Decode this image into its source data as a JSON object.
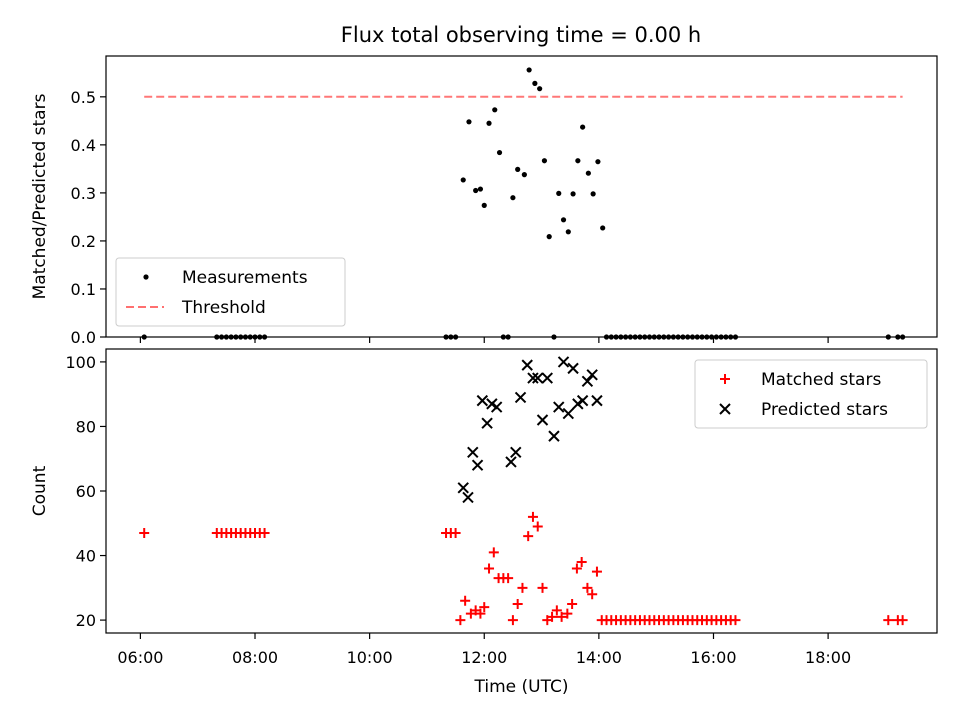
{
  "figure": {
    "title": "Flux total observing time = 0.00 h"
  },
  "chart_data": [
    {
      "type": "scatter",
      "title": "Flux total observing time = 0.00 h",
      "xlabel": "",
      "ylabel": "Matched/Predicted stars",
      "x_axis": "time",
      "xlim": [
        "05:24",
        "19:54"
      ],
      "ylim": [
        0,
        0.585
      ],
      "yticks": [
        "0.0",
        "0.1",
        "0.2",
        "0.3",
        "0.4",
        "0.5"
      ],
      "xticks": [
        "06:00",
        "08:00",
        "10:00",
        "12:00",
        "14:00",
        "16:00",
        "18:00"
      ],
      "grid": false,
      "legend": "lower-left",
      "series": [
        {
          "name": "Measurements",
          "style": "dot",
          "color": "#000000",
          "points": [
            [
              "06:04",
              0
            ],
            [
              "07:20",
              0
            ],
            [
              "07:25",
              0
            ],
            [
              "07:30",
              0
            ],
            [
              "07:35",
              0
            ],
            [
              "07:40",
              0
            ],
            [
              "07:45",
              0
            ],
            [
              "07:50",
              0
            ],
            [
              "07:55",
              0
            ],
            [
              "08:00",
              0
            ],
            [
              "08:05",
              0
            ],
            [
              "08:10",
              0
            ],
            [
              "11:20",
              0
            ],
            [
              "11:25",
              0
            ],
            [
              "11:30",
              0
            ],
            [
              "11:38",
              0.327
            ],
            [
              "11:44",
              0.448
            ],
            [
              "11:51",
              0.305
            ],
            [
              "11:56",
              0.308
            ],
            [
              "12:00",
              0.274
            ],
            [
              "12:05",
              0.445
            ],
            [
              "12:11",
              0.473
            ],
            [
              "12:16",
              0.384
            ],
            [
              "12:20",
              0
            ],
            [
              "12:25",
              0
            ],
            [
              "12:30",
              0.29
            ],
            [
              "12:35",
              0.349
            ],
            [
              "12:42",
              0.338
            ],
            [
              "12:47",
              0.556
            ],
            [
              "12:53",
              0.528
            ],
            [
              "12:58",
              0.517
            ],
            [
              "13:03",
              0.367
            ],
            [
              "13:08",
              0.209
            ],
            [
              "13:13",
              0
            ],
            [
              "13:18",
              0.299
            ],
            [
              "13:23",
              0.244
            ],
            [
              "13:28",
              0.219
            ],
            [
              "13:33",
              0.298
            ],
            [
              "13:38",
              0.367
            ],
            [
              "13:43",
              0.437
            ],
            [
              "13:49",
              0.341
            ],
            [
              "13:54",
              0.298
            ],
            [
              "13:59",
              0.365
            ],
            [
              "14:04",
              0.227
            ],
            [
              "14:08",
              0
            ],
            [
              "14:13",
              0
            ],
            [
              "14:18",
              0
            ],
            [
              "14:23",
              0
            ],
            [
              "14:28",
              0
            ],
            [
              "14:33",
              0
            ],
            [
              "14:38",
              0
            ],
            [
              "14:43",
              0
            ],
            [
              "14:48",
              0
            ],
            [
              "14:53",
              0
            ],
            [
              "14:58",
              0
            ],
            [
              "15:03",
              0
            ],
            [
              "15:08",
              0
            ],
            [
              "15:13",
              0
            ],
            [
              "15:18",
              0
            ],
            [
              "15:23",
              0
            ],
            [
              "15:28",
              0
            ],
            [
              "15:33",
              0
            ],
            [
              "15:38",
              0
            ],
            [
              "15:43",
              0
            ],
            [
              "15:48",
              0
            ],
            [
              "15:53",
              0
            ],
            [
              "15:58",
              0
            ],
            [
              "16:03",
              0
            ],
            [
              "16:08",
              0
            ],
            [
              "16:13",
              0
            ],
            [
              "16:18",
              0
            ],
            [
              "16:23",
              0
            ],
            [
              "19:03",
              0
            ],
            [
              "19:13",
              0
            ],
            [
              "19:18",
              0
            ]
          ]
        },
        {
          "name": "Threshold",
          "style": "dashed-line",
          "color": "#ff7070",
          "points": [
            [
              "06:04",
              0.5
            ],
            [
              "19:18",
              0.5
            ]
          ]
        }
      ]
    },
    {
      "type": "scatter",
      "title": "",
      "xlabel": "Time (UTC)",
      "ylabel": "Count",
      "x_axis": "time",
      "xlim": [
        "05:24",
        "19:54"
      ],
      "ylim": [
        16,
        104
      ],
      "yticks": [
        "20",
        "40",
        "60",
        "80",
        "100"
      ],
      "xticks": [
        "06:00",
        "08:00",
        "10:00",
        "12:00",
        "14:00",
        "16:00",
        "18:00"
      ],
      "grid": false,
      "legend": "upper-right",
      "series": [
        {
          "name": "Matched stars",
          "style": "plus",
          "color": "#ff0000",
          "points": [
            [
              "06:04",
              47
            ],
            [
              "07:20",
              47
            ],
            [
              "07:25",
              47
            ],
            [
              "07:30",
              47
            ],
            [
              "07:35",
              47
            ],
            [
              "07:40",
              47
            ],
            [
              "07:45",
              47
            ],
            [
              "07:50",
              47
            ],
            [
              "07:55",
              47
            ],
            [
              "08:00",
              47
            ],
            [
              "08:05",
              47
            ],
            [
              "08:10",
              47
            ],
            [
              "11:20",
              47
            ],
            [
              "11:25",
              47
            ],
            [
              "11:30",
              47
            ],
            [
              "11:35",
              20
            ],
            [
              "11:40",
              26
            ],
            [
              "11:46",
              22
            ],
            [
              "11:51",
              23
            ],
            [
              "11:56",
              22
            ],
            [
              "12:00",
              24
            ],
            [
              "12:05",
              36
            ],
            [
              "12:10",
              41
            ],
            [
              "12:15",
              33
            ],
            [
              "12:20",
              33
            ],
            [
              "12:25",
              33
            ],
            [
              "12:30",
              20
            ],
            [
              "12:35",
              25
            ],
            [
              "12:40",
              30
            ],
            [
              "12:46",
              46
            ],
            [
              "12:51",
              52
            ],
            [
              "12:56",
              49
            ],
            [
              "13:01",
              30
            ],
            [
              "13:06",
              20
            ],
            [
              "13:11",
              21
            ],
            [
              "13:16",
              23
            ],
            [
              "13:21",
              21
            ],
            [
              "13:27",
              22
            ],
            [
              "13:32",
              25
            ],
            [
              "13:37",
              36
            ],
            [
              "13:42",
              38
            ],
            [
              "13:48",
              30
            ],
            [
              "13:53",
              28
            ],
            [
              "13:58",
              35
            ],
            [
              "14:03",
              20
            ],
            [
              "14:08",
              20
            ],
            [
              "14:13",
              20
            ],
            [
              "14:18",
              20
            ],
            [
              "14:23",
              20
            ],
            [
              "14:28",
              20
            ],
            [
              "14:33",
              20
            ],
            [
              "14:38",
              20
            ],
            [
              "14:43",
              20
            ],
            [
              "14:48",
              20
            ],
            [
              "14:53",
              20
            ],
            [
              "14:58",
              20
            ],
            [
              "15:03",
              20
            ],
            [
              "15:08",
              20
            ],
            [
              "15:13",
              20
            ],
            [
              "15:18",
              20
            ],
            [
              "15:23",
              20
            ],
            [
              "15:28",
              20
            ],
            [
              "15:33",
              20
            ],
            [
              "15:38",
              20
            ],
            [
              "15:43",
              20
            ],
            [
              "15:48",
              20
            ],
            [
              "15:53",
              20
            ],
            [
              "15:58",
              20
            ],
            [
              "16:03",
              20
            ],
            [
              "16:08",
              20
            ],
            [
              "16:13",
              20
            ],
            [
              "16:18",
              20
            ],
            [
              "16:23",
              20
            ],
            [
              "19:03",
              20
            ],
            [
              "19:13",
              20
            ],
            [
              "19:18",
              20
            ]
          ]
        },
        {
          "name": "Predicted stars",
          "style": "cross",
          "color": "#000000",
          "points": [
            [
              "11:38",
              61
            ],
            [
              "11:43",
              58
            ],
            [
              "11:48",
              72
            ],
            [
              "11:53",
              68
            ],
            [
              "11:58",
              88
            ],
            [
              "12:03",
              81
            ],
            [
              "12:08",
              87
            ],
            [
              "12:13",
              86
            ],
            [
              "12:28",
              69
            ],
            [
              "12:33",
              72
            ],
            [
              "12:38",
              89
            ],
            [
              "12:45",
              99
            ],
            [
              "12:51",
              95
            ],
            [
              "12:56",
              95
            ],
            [
              "13:01",
              82
            ],
            [
              "13:06",
              95
            ],
            [
              "13:13",
              77
            ],
            [
              "13:18",
              86
            ],
            [
              "13:23",
              100
            ],
            [
              "13:28",
              84
            ],
            [
              "13:33",
              98
            ],
            [
              "13:38",
              87
            ],
            [
              "13:43",
              88
            ],
            [
              "13:48",
              94
            ],
            [
              "13:53",
              96
            ],
            [
              "13:58",
              88
            ]
          ]
        }
      ]
    }
  ]
}
